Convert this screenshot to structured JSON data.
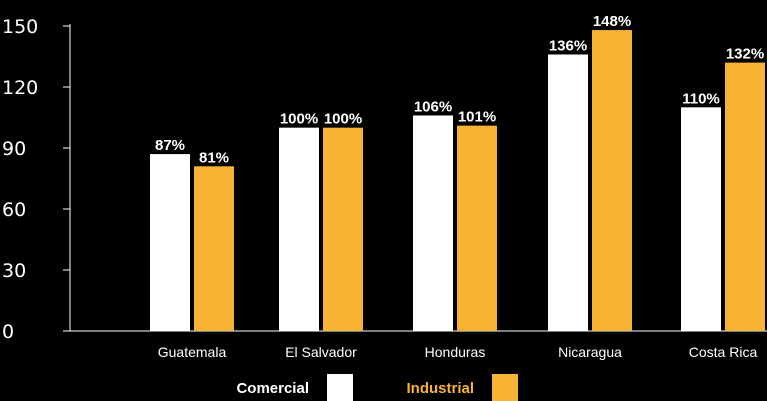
{
  "chart_data": {
    "type": "bar",
    "title": "",
    "xlabel": "",
    "ylabel": "",
    "ylim": [
      0,
      150
    ],
    "yticks": [
      "0",
      "30",
      "60",
      "90",
      "120",
      "150"
    ],
    "categories": [
      "Guatemala",
      "El Salvador",
      "Honduras",
      "Nicaragua",
      "Costa Rica"
    ],
    "series": [
      {
        "name": "Comercial",
        "color": "#ffffff",
        "values": [
          87,
          100,
          106,
          136,
          110
        ],
        "labels": [
          "87%",
          "100%",
          "106%",
          "136%",
          "110%"
        ]
      },
      {
        "name": "Industrial",
        "color": "#f7b334",
        "values": [
          81,
          100,
          101,
          148,
          132
        ],
        "labels": [
          "81%",
          "100%",
          "101%",
          "148%",
          "132%"
        ]
      }
    ],
    "grid": false,
    "legend": "bottom-center",
    "legend_text_colors": [
      "#ffffff",
      "#f7b334"
    ]
  }
}
